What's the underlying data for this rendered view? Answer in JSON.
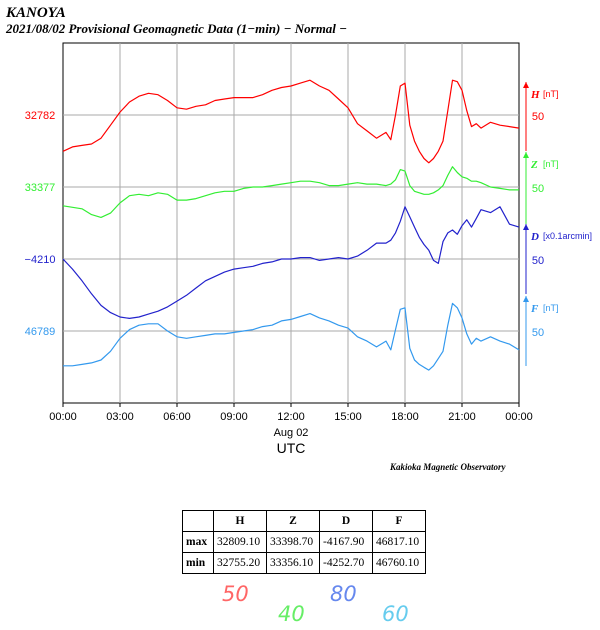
{
  "header": {
    "station": "KANOYA",
    "subtitle": "2021/08/02  Provisional Geomagnetic Data (1−min)  − Normal −"
  },
  "observatory": "Kakioka Magnetic Observatory",
  "chart_data": {
    "type": "line",
    "title": "Provisional Geomagnetic Data (1-min)",
    "date": "2021/08/02",
    "xlabel": "UTC",
    "x_date_label": "Aug 02",
    "xlim": [
      0,
      24
    ],
    "x_ticks": [
      0,
      3,
      6,
      9,
      12,
      15,
      18,
      21,
      24
    ],
    "x_tick_labels": [
      "00:00",
      "03:00",
      "06:00",
      "09:00",
      "12:00",
      "15:00",
      "18:00",
      "21:00",
      "00:00"
    ],
    "series": [
      {
        "name": "H",
        "unit": "[nT]",
        "scale": "50",
        "baseline": "32782",
        "color": "#ff0000",
        "x": [
          0,
          0.5,
          1,
          1.5,
          2,
          2.5,
          3,
          3.5,
          4,
          4.5,
          5,
          5.5,
          6,
          6.5,
          7,
          7.5,
          8,
          8.5,
          9,
          9.5,
          10,
          10.5,
          11,
          11.5,
          12,
          12.5,
          13,
          13.5,
          14,
          14.5,
          15,
          15.5,
          16,
          16.5,
          17,
          17.25,
          17.5,
          17.75,
          18,
          18.25,
          18.5,
          18.75,
          19,
          19.25,
          19.5,
          19.75,
          20,
          20.25,
          20.5,
          20.75,
          21,
          21.25,
          21.5,
          21.75,
          22,
          22.5,
          23,
          23.5,
          24
        ],
        "values": [
          32757,
          32760,
          32761,
          32762,
          32766,
          32775,
          32784,
          32791,
          32795,
          32797,
          32796,
          32792,
          32787,
          32786,
          32788,
          32789,
          32792,
          32793,
          32794,
          32794,
          32794,
          32796,
          32799,
          32801,
          32802,
          32804,
          32806,
          32802,
          32799,
          32793,
          32787,
          32776,
          32771,
          32766,
          32770,
          32765,
          32782,
          32802,
          32804,
          32775,
          32764,
          32757,
          32752,
          32749,
          32752,
          32757,
          32764,
          32785,
          32806,
          32805,
          32799,
          32785,
          32774,
          32776,
          32773,
          32777,
          32775,
          32774,
          32773
        ]
      },
      {
        "name": "Z",
        "unit": "[nT]",
        "scale": "50",
        "baseline": "33377",
        "color": "#33ee33",
        "x": [
          0,
          0.5,
          1,
          1.5,
          2,
          2.5,
          3,
          3.5,
          4,
          4.5,
          5,
          5.5,
          6,
          6.5,
          7,
          7.5,
          8,
          8.5,
          9,
          9.5,
          10,
          10.5,
          11,
          11.5,
          12,
          12.5,
          13,
          13.5,
          14,
          14.5,
          15,
          15.5,
          16,
          16.5,
          17,
          17.25,
          17.5,
          17.75,
          18,
          18.25,
          18.5,
          18.75,
          19,
          19.25,
          19.5,
          19.75,
          20,
          20.25,
          20.5,
          20.75,
          21,
          21.25,
          21.5,
          21.75,
          22,
          22.5,
          23,
          23.5,
          24
        ],
        "values": [
          33364,
          33363,
          33362,
          33358,
          33356,
          33359,
          33366,
          33371,
          33372,
          33371,
          33373,
          33372,
          33368,
          33368,
          33369,
          33371,
          33373,
          33374,
          33374,
          33376,
          33377,
          33377,
          33378,
          33379,
          33380,
          33381,
          33381,
          33380,
          33378,
          33378,
          33379,
          33380,
          33379,
          33379,
          33378,
          33379,
          33382,
          33389,
          33388,
          33378,
          33374,
          33373,
          33372,
          33372,
          33373,
          33375,
          33378,
          33385,
          33391,
          33387,
          33384,
          33383,
          33381,
          33381,
          33380,
          33377,
          33376,
          33375,
          33375
        ]
      },
      {
        "name": "D",
        "unit": "[x0.1arcmin]",
        "scale": "50",
        "baseline": "−4210",
        "color": "#2222cc",
        "x": [
          0,
          0.5,
          1,
          1.5,
          2,
          2.5,
          3,
          3.5,
          4,
          4.5,
          5,
          5.5,
          6,
          6.5,
          7,
          7.5,
          8,
          8.5,
          9,
          9.5,
          10,
          10.5,
          11,
          11.5,
          12,
          12.5,
          13,
          13.5,
          14,
          14.5,
          15,
          15.5,
          16,
          16.5,
          17,
          17.25,
          17.5,
          17.75,
          18,
          18.25,
          18.5,
          18.75,
          19,
          19.25,
          19.5,
          19.75,
          20,
          20.25,
          20.5,
          20.75,
          21,
          21.25,
          21.5,
          21.75,
          22,
          22.5,
          23,
          23.5,
          24
        ],
        "values": [
          -4210,
          -4217,
          -4225,
          -4234,
          -4242,
          -4247,
          -4250,
          -4251,
          -4250,
          -4248,
          -4246,
          -4243,
          -4239,
          -4235,
          -4230,
          -4225,
          -4222,
          -4219,
          -4217,
          -4216,
          -4215,
          -4213,
          -4212,
          -4210,
          -4210,
          -4209,
          -4209,
          -4211,
          -4210,
          -4209,
          -4210,
          -4208,
          -4204,
          -4199,
          -4199,
          -4197,
          -4192,
          -4184,
          -4174,
          -4181,
          -4188,
          -4195,
          -4200,
          -4204,
          -4211,
          -4213,
          -4198,
          -4192,
          -4190,
          -4193,
          -4187,
          -4183,
          -4188,
          -4182,
          -4176,
          -4178,
          -4174,
          -4186,
          -4188
        ]
      },
      {
        "name": "F",
        "unit": "[nT]",
        "scale": "50",
        "baseline": "46789",
        "color": "#3399ee",
        "x": [
          0,
          0.5,
          1,
          1.5,
          2,
          2.5,
          3,
          3.5,
          4,
          4.5,
          5,
          5.5,
          6,
          6.5,
          7,
          7.5,
          8,
          8.5,
          9,
          9.5,
          10,
          10.5,
          11,
          11.5,
          12,
          12.5,
          13,
          13.5,
          14,
          14.5,
          15,
          15.5,
          16,
          16.5,
          17,
          17.25,
          17.5,
          17.75,
          18,
          18.25,
          18.5,
          18.75,
          19,
          19.25,
          19.5,
          19.75,
          20,
          20.25,
          20.5,
          20.75,
          21,
          21.25,
          21.5,
          21.75,
          22,
          22.5,
          23,
          23.5,
          24
        ],
        "values": [
          46765,
          46765,
          46766,
          46767,
          46769,
          46775,
          46784,
          46790,
          46793,
          46794,
          46794,
          46789,
          46785,
          46784,
          46785,
          46786,
          46787,
          46787,
          46788,
          46789,
          46790,
          46792,
          46793,
          46796,
          46797,
          46799,
          46801,
          46798,
          46796,
          46793,
          46791,
          46785,
          46782,
          46778,
          46782,
          46776,
          46790,
          46804,
          46805,
          46777,
          46769,
          46766,
          46764,
          46762,
          46765,
          46770,
          46775,
          46793,
          46808,
          46805,
          46798,
          46787,
          46780,
          46784,
          46782,
          46785,
          46782,
          46780,
          46776
        ]
      }
    ]
  },
  "stats_table": {
    "columns": [
      "H",
      "Z",
      "D",
      "F"
    ],
    "rows": [
      {
        "label": "max",
        "values": [
          "32809.10",
          "33398.70",
          "-4167.90",
          "46817.10"
        ]
      },
      {
        "label": "min",
        "values": [
          "32755.20",
          "33356.10",
          "-4252.70",
          "46760.10"
        ]
      }
    ]
  },
  "color_scale_labels": [
    {
      "text": "50",
      "color": "#ff6666"
    },
    {
      "text": "40",
      "color": "#66ee66"
    },
    {
      "text": "80",
      "color": "#6688ee"
    },
    {
      "text": "60",
      "color": "#66ccee"
    }
  ]
}
